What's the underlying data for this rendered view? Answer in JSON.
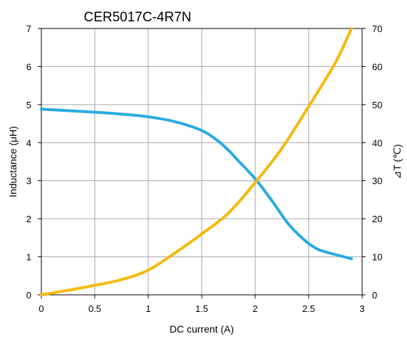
{
  "chart_data": {
    "type": "line",
    "title": "CER5017C-4R7N",
    "xlabel": "DC current (A)",
    "ylabel": "Inductance (μH)",
    "y2label": "⊿T (℃)",
    "xlim": [
      0,
      3
    ],
    "ylim": [
      0,
      7
    ],
    "y2lim": [
      0,
      70
    ],
    "grid": true,
    "x_ticks": [
      "0",
      "0.5",
      "1",
      "1.5",
      "2",
      "2.5",
      "3"
    ],
    "y_ticks": [
      "0",
      "1",
      "2",
      "3",
      "4",
      "5",
      "6",
      "7"
    ],
    "y2_ticks": [
      "0",
      "10",
      "20",
      "30",
      "40",
      "50",
      "60",
      "70"
    ],
    "series": [
      {
        "axis": "left",
        "color": "#29abe2",
        "x": [
          0,
          0.25,
          0.5,
          0.75,
          1.0,
          1.25,
          1.5,
          1.65,
          1.75,
          1.85,
          2.0,
          2.15,
          2.3,
          2.4,
          2.5,
          2.6,
          2.75,
          2.9
        ],
        "y": [
          4.88,
          4.84,
          4.8,
          4.75,
          4.68,
          4.55,
          4.32,
          4.05,
          3.8,
          3.5,
          3.05,
          2.5,
          1.9,
          1.6,
          1.35,
          1.18,
          1.06,
          0.95
        ]
      },
      {
        "axis": "right",
        "color": "#f5b90f",
        "x": [
          0,
          0.25,
          0.5,
          0.75,
          1.0,
          1.25,
          1.5,
          1.75,
          2.0,
          2.25,
          2.5,
          2.75,
          2.9
        ],
        "y": [
          0,
          1.2,
          2.5,
          4.0,
          6.5,
          11,
          16,
          21.5,
          29.5,
          38.5,
          49.5,
          61,
          70
        ]
      }
    ]
  }
}
